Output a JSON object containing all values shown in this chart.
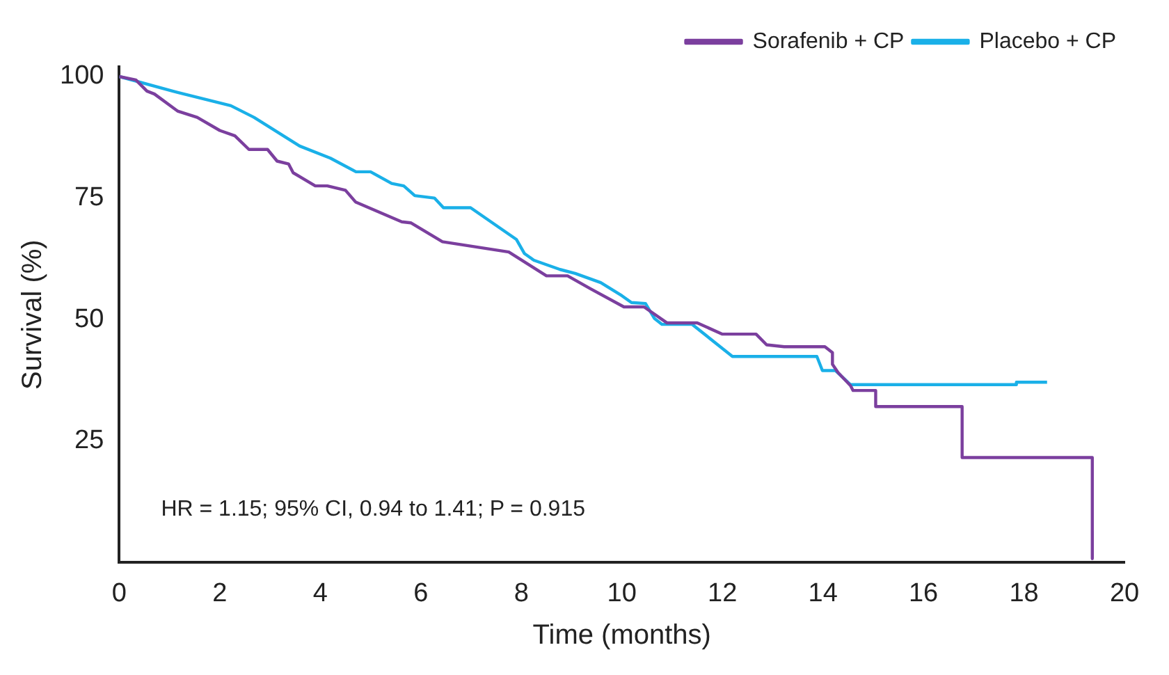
{
  "chart_data": {
    "type": "line",
    "xlabel": "Time (months)",
    "ylabel": "Survival (%)",
    "xlim": [
      0,
      20
    ],
    "xticks": [
      0,
      2,
      4,
      6,
      8,
      10,
      12,
      14,
      16,
      18,
      20
    ],
    "ylim": [
      0,
      102
    ],
    "yticks": [
      25,
      50,
      75,
      100
    ],
    "grid": false,
    "legend": "top right",
    "line_style": "solid",
    "marker": "none",
    "annotations": [
      "HR = 1.15; 95% CI, 0.94 to 1.41; P = 0.915"
    ],
    "series": [
      {
        "name": "Sorafenib + CP",
        "color": "#7b3f9e",
        "x": [
          0,
          0.33,
          0.55,
          0.7,
          1.16,
          1.55,
          2.0,
          2.3,
          2.58,
          2.95,
          3.14,
          3.37,
          3.46,
          3.9,
          4.14,
          4.5,
          4.7,
          5.62,
          5.8,
          6.43,
          7.75,
          8.5,
          8.92,
          9.38,
          10.04,
          10.44,
          10.9,
          11.5,
          12.0,
          12.67,
          12.88,
          13.23,
          14.04,
          14.19,
          14.19,
          14.3,
          14.55,
          14.6,
          15.05,
          15.05,
          16.77,
          16.77,
          19.36,
          19.36
        ],
        "values": [
          100,
          99.3,
          97,
          96.4,
          92.9,
          91.6,
          88.9,
          87.8,
          85,
          85,
          82.6,
          82,
          80.2,
          77.5,
          77.5,
          76.6,
          74.2,
          70.1,
          69.9,
          66,
          63.9,
          59,
          59,
          56.3,
          52.6,
          52.6,
          49.3,
          49.3,
          47,
          47,
          44.8,
          44.4,
          44.4,
          43.2,
          40.8,
          39.1,
          36.4,
          35.4,
          35.4,
          32.1,
          32.1,
          21.6,
          21.6,
          0.8
        ]
      },
      {
        "name": "Placebo + CP",
        "color": "#1ab0e8",
        "x": [
          0,
          1.06,
          2.22,
          2.68,
          3.59,
          4.2,
          4.71,
          5.0,
          5.42,
          5.66,
          5.88,
          6.27,
          6.45,
          6.99,
          7.9,
          8.06,
          8.25,
          8.77,
          9.07,
          9.58,
          10.0,
          10.19,
          10.47,
          10.65,
          10.8,
          11.4,
          12.2,
          13.88,
          13.99,
          14.25,
          14.55,
          17.85,
          17.85,
          18.46
        ],
        "values": [
          100,
          97,
          94,
          91.6,
          85.7,
          83.2,
          80.4,
          80.4,
          78,
          77.5,
          75.5,
          75,
          73,
          73,
          66.5,
          63.6,
          62.2,
          60.3,
          59.5,
          57.6,
          54.9,
          53.5,
          53.3,
          50.2,
          49,
          49,
          42.4,
          42.4,
          39.5,
          39.5,
          36.6,
          36.6,
          37.1,
          37.1
        ]
      }
    ]
  }
}
